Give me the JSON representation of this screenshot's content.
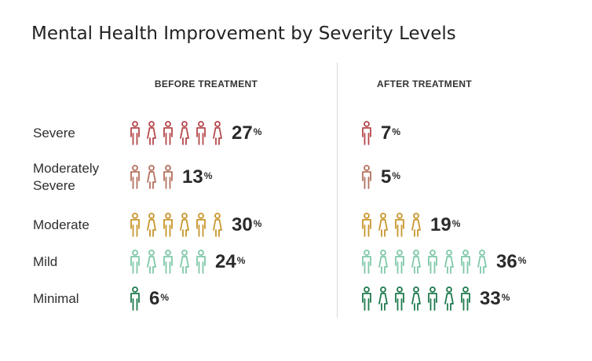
{
  "title": "Mental Health Improvement by Severity Levels",
  "columns": {
    "before": "BEFORE TREATMENT",
    "after": "AFTER TREATMENT"
  },
  "percent_sign": "%",
  "colors": {
    "Severe": "#b5484b",
    "Moderately Severe": "#b5705f",
    "Moderate": "#c9962e",
    "Mild": "#7fc8a9",
    "Minimal": "#1e7a4c"
  },
  "chart_data": {
    "type": "pictogram",
    "title": "Mental Health Improvement by Severity Levels",
    "categories": [
      "Severe",
      "Moderately Severe",
      "Moderate",
      "Mild",
      "Minimal"
    ],
    "series": [
      {
        "name": "BEFORE TREATMENT",
        "values": [
          27,
          13,
          30,
          24,
          6
        ],
        "icons": [
          6,
          3,
          6,
          5,
          1
        ]
      },
      {
        "name": "AFTER TREATMENT",
        "values": [
          7,
          5,
          19,
          36,
          33
        ],
        "icons": [
          1,
          1,
          4,
          8,
          7
        ]
      }
    ],
    "unit": "%"
  },
  "rows": [
    {
      "label_lines": [
        "Severe"
      ],
      "before": 27,
      "after": 7
    },
    {
      "label_lines": [
        "Moderately",
        "Severe"
      ],
      "before": 13,
      "after": 5
    },
    {
      "label_lines": [
        "Moderate"
      ],
      "before": 30,
      "after": 19
    },
    {
      "label_lines": [
        "Mild"
      ],
      "before": 24,
      "after": 36
    },
    {
      "label_lines": [
        "Minimal"
      ],
      "before": 6,
      "after": 33
    }
  ]
}
